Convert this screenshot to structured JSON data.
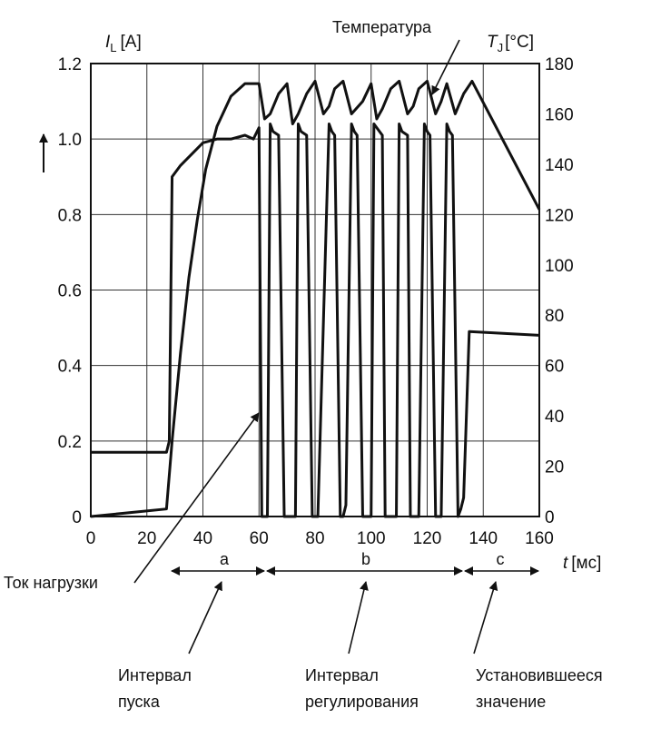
{
  "chart_data": {
    "type": "line",
    "x_axis": {
      "label": "t",
      "unit": "[мс]",
      "range": [
        0,
        160
      ],
      "ticks": [
        "0",
        "20",
        "40",
        "60",
        "80",
        "100",
        "120",
        "140",
        "160"
      ]
    },
    "y_left": {
      "label": "I",
      "subscript": "L",
      "unit": "[A]",
      "range": [
        0,
        1.2
      ],
      "ticks": [
        "0",
        "0.2",
        "0.4",
        "0.6",
        "0.8",
        "1.0",
        "1.2"
      ]
    },
    "y_right": {
      "label": "T",
      "subscript": "J",
      "unit": "[°C]",
      "range": [
        0,
        180
      ],
      "ticks": [
        "0",
        "20",
        "40",
        "60",
        "80",
        "100",
        "120",
        "140",
        "160",
        "180"
      ]
    },
    "grid": true,
    "series": [
      {
        "name": "Температура",
        "axis": "right",
        "x": [
          0,
          27,
          29,
          32,
          35,
          38,
          41,
          45,
          50,
          55,
          60,
          62,
          64,
          67,
          70,
          72,
          74,
          77,
          80,
          83,
          85,
          87,
          90,
          93,
          97,
          100,
          102,
          104,
          107,
          110,
          113,
          115,
          117,
          120,
          123,
          125,
          127,
          130,
          133,
          136,
          160
        ],
        "y": [
          0,
          3,
          30,
          65,
          95,
          118,
          138,
          155,
          167,
          172,
          172,
          158,
          160,
          168,
          172,
          156,
          160,
          168,
          173,
          160,
          163,
          170,
          173,
          160,
          165,
          172,
          158,
          162,
          170,
          173,
          160,
          163,
          170,
          173,
          160,
          165,
          172,
          160,
          168,
          173,
          122
        ]
      },
      {
        "name": "Ток нагрузки",
        "axis": "left",
        "x": [
          0,
          27,
          28,
          29,
          32,
          36,
          40,
          45,
          50,
          55,
          58,
          60,
          61,
          63,
          64,
          65,
          67,
          69,
          70,
          71,
          73,
          74,
          75,
          77,
          79,
          80,
          81,
          85,
          86,
          87,
          89,
          90,
          91,
          93,
          94,
          95,
          97,
          99,
          100,
          101,
          103,
          104,
          105,
          107,
          109,
          110,
          111,
          113,
          114,
          115,
          117,
          119,
          120,
          121,
          123,
          124,
          125,
          127,
          128,
          129,
          131,
          132,
          133,
          135,
          160
        ],
        "y": [
          0.17,
          0.17,
          0.2,
          0.9,
          0.93,
          0.96,
          0.99,
          1.0,
          1.0,
          1.01,
          1.0,
          1.03,
          0,
          0,
          1.04,
          1.02,
          1.01,
          0,
          0,
          0,
          0,
          1.04,
          1.02,
          1.01,
          0,
          0,
          0,
          1.04,
          1.02,
          1.01,
          0,
          0,
          0.03,
          1.04,
          1.02,
          1.01,
          0,
          0,
          0,
          1.04,
          1.02,
          1.01,
          0,
          0,
          0,
          1.04,
          1.02,
          1.01,
          0,
          0,
          0,
          1.04,
          1.02,
          1.01,
          0,
          0,
          0,
          1.04,
          1.02,
          1.01,
          0,
          0.02,
          0.05,
          0.49,
          0.48
        ]
      }
    ],
    "annotations": [
      {
        "text": "Температура",
        "target": "temperature-curve"
      },
      {
        "text": "Ток нагрузки",
        "target": "current-curve"
      },
      {
        "text": "a",
        "interval": [
          27,
          62
        ]
      },
      {
        "text": "b",
        "interval": [
          62,
          132
        ]
      },
      {
        "text": "c",
        "interval": [
          132,
          160
        ]
      }
    ],
    "interval_notes": [
      {
        "line1": "Интервал",
        "line2": "пуска",
        "interval": "a"
      },
      {
        "line1": "Интервал",
        "line2": "регулирования",
        "interval": "b"
      },
      {
        "line1": "Установившееся",
        "line2": "значение",
        "interval": "c"
      }
    ]
  }
}
